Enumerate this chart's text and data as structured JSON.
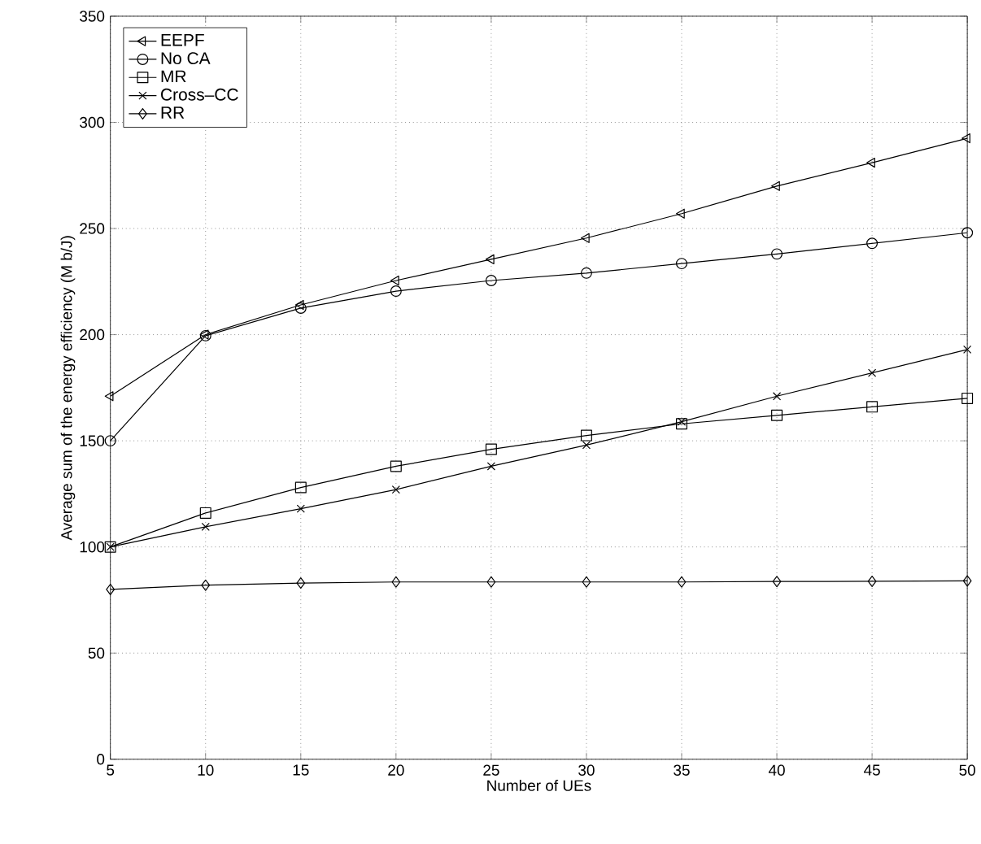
{
  "chart_data": {
    "type": "line",
    "xlabel": "Number of UEs",
    "ylabel": "Average sum of the energy efficiency (M b/J)",
    "x": [
      5,
      10,
      15,
      20,
      25,
      30,
      35,
      40,
      45,
      50
    ],
    "series": [
      {
        "name": "EEPF",
        "color": "#000000",
        "marker": "triangle",
        "values": [
          171,
          200,
          214,
          225.5,
          235.5,
          245.5,
          257,
          270,
          281,
          292.5
        ]
      },
      {
        "name": "No CA",
        "color": "#000000",
        "marker": "circle",
        "values": [
          150,
          199.5,
          212.5,
          220.5,
          225.5,
          229,
          233.5,
          238,
          243,
          248
        ]
      },
      {
        "name": "MR",
        "color": "#000000",
        "marker": "square",
        "values": [
          100,
          116,
          128,
          138,
          146,
          152.5,
          158,
          162,
          166,
          170
        ]
      },
      {
        "name": "Cross–CC",
        "color": "#000000",
        "marker": "cross",
        "values": [
          100,
          109.5,
          118,
          127,
          138,
          148,
          159,
          171,
          182,
          193
        ]
      },
      {
        "name": "RR",
        "color": "#000000",
        "marker": "diamond",
        "values": [
          80,
          82,
          83,
          83.5,
          83.5,
          83.5,
          83.5,
          83.7,
          83.8,
          84
        ]
      }
    ],
    "xlim": [
      5,
      50
    ],
    "xticks": [
      5,
      10,
      15,
      20,
      25,
      30,
      35,
      40,
      45,
      50
    ],
    "ylim": [
      0,
      350
    ],
    "yticks": [
      0,
      50,
      100,
      150,
      200,
      250,
      300,
      350
    ],
    "grid": true,
    "legend": "top left",
    "line_style": "solid"
  }
}
